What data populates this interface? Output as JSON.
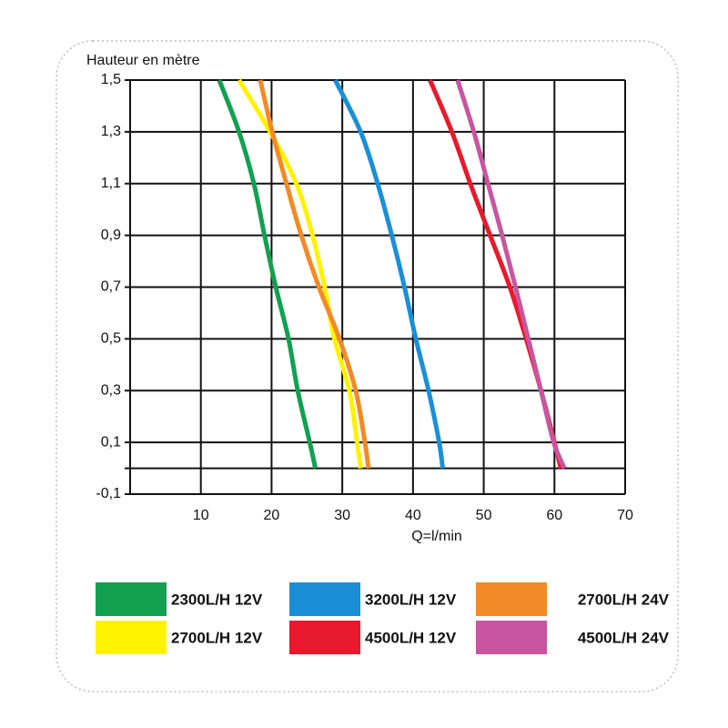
{
  "chart_data": {
    "type": "line",
    "y_label": "Hauteur en mètre",
    "x_label": "Q=l/min",
    "xlim": [
      0,
      70
    ],
    "ylim": [
      -0.1,
      1.5
    ],
    "xticks": [
      10,
      20,
      30,
      40,
      50,
      60,
      70
    ],
    "yticks": [
      {
        "value": 1.5,
        "label": "1,5"
      },
      {
        "value": 1.3,
        "label": "1,3"
      },
      {
        "value": 1.1,
        "label": "1,1"
      },
      {
        "value": 0.9,
        "label": "0,9"
      },
      {
        "value": 0.7,
        "label": "0,7"
      },
      {
        "value": 0.5,
        "label": "0,5"
      },
      {
        "value": 0.3,
        "label": "0,3"
      },
      {
        "value": 0.1,
        "label": "0,1"
      },
      {
        "value": -0.1,
        "label": "-0,1"
      }
    ],
    "hlines": [
      0
    ],
    "grid": true,
    "legend": "bottom",
    "series": [
      {
        "name": "2300L/H 12V",
        "color": "#12a050",
        "x": [
          12.6,
          15.4,
          17.5,
          19.0,
          20.6,
          22.4,
          23.7,
          25.4,
          26.2
        ],
        "y": [
          1.5,
          1.3,
          1.1,
          0.9,
          0.7,
          0.5,
          0.3,
          0.1,
          0
        ]
      },
      {
        "name": "2700L/H 12V",
        "color": "#fff200",
        "x": [
          15.4,
          19.8,
          23.5,
          25.8,
          27.5,
          28.9,
          31.0,
          32.1,
          32.6
        ],
        "y": [
          1.5,
          1.3,
          1.1,
          0.9,
          0.7,
          0.5,
          0.3,
          0.1,
          0
        ]
      },
      {
        "name": "3200L/H 12V",
        "color": "#1a8fd8",
        "x": [
          29.0,
          32.6,
          35.0,
          37.0,
          38.8,
          40.4,
          42.2,
          43.7,
          44.2
        ],
        "y": [
          1.5,
          1.3,
          1.1,
          0.9,
          0.7,
          0.5,
          0.3,
          0.1,
          0
        ]
      },
      {
        "name": "4500L/H 12V",
        "color": "#e8192c",
        "x": [
          42.4,
          45.5,
          48.1,
          50.9,
          53.7,
          56.0,
          58.1,
          60.0,
          60.9
        ],
        "y": [
          1.5,
          1.3,
          1.1,
          0.9,
          0.7,
          0.5,
          0.3,
          0.1,
          0
        ]
      },
      {
        "name": "2700L/H 24V",
        "color": "#f28a26",
        "x": [
          18.4,
          20.1,
          22.1,
          24.2,
          26.7,
          29.6,
          31.9,
          33.2,
          33.7
        ],
        "y": [
          1.5,
          1.3,
          1.1,
          0.9,
          0.7,
          0.5,
          0.3,
          0.1,
          0
        ]
      },
      {
        "name": "4500L/H 24V",
        "color": "#c8559f",
        "x": [
          46.3,
          48.6,
          50.6,
          52.6,
          54.5,
          56.3,
          58.1,
          59.9,
          61.4
        ],
        "y": [
          1.5,
          1.3,
          1.1,
          0.9,
          0.7,
          0.5,
          0.3,
          0.1,
          0
        ]
      }
    ]
  }
}
